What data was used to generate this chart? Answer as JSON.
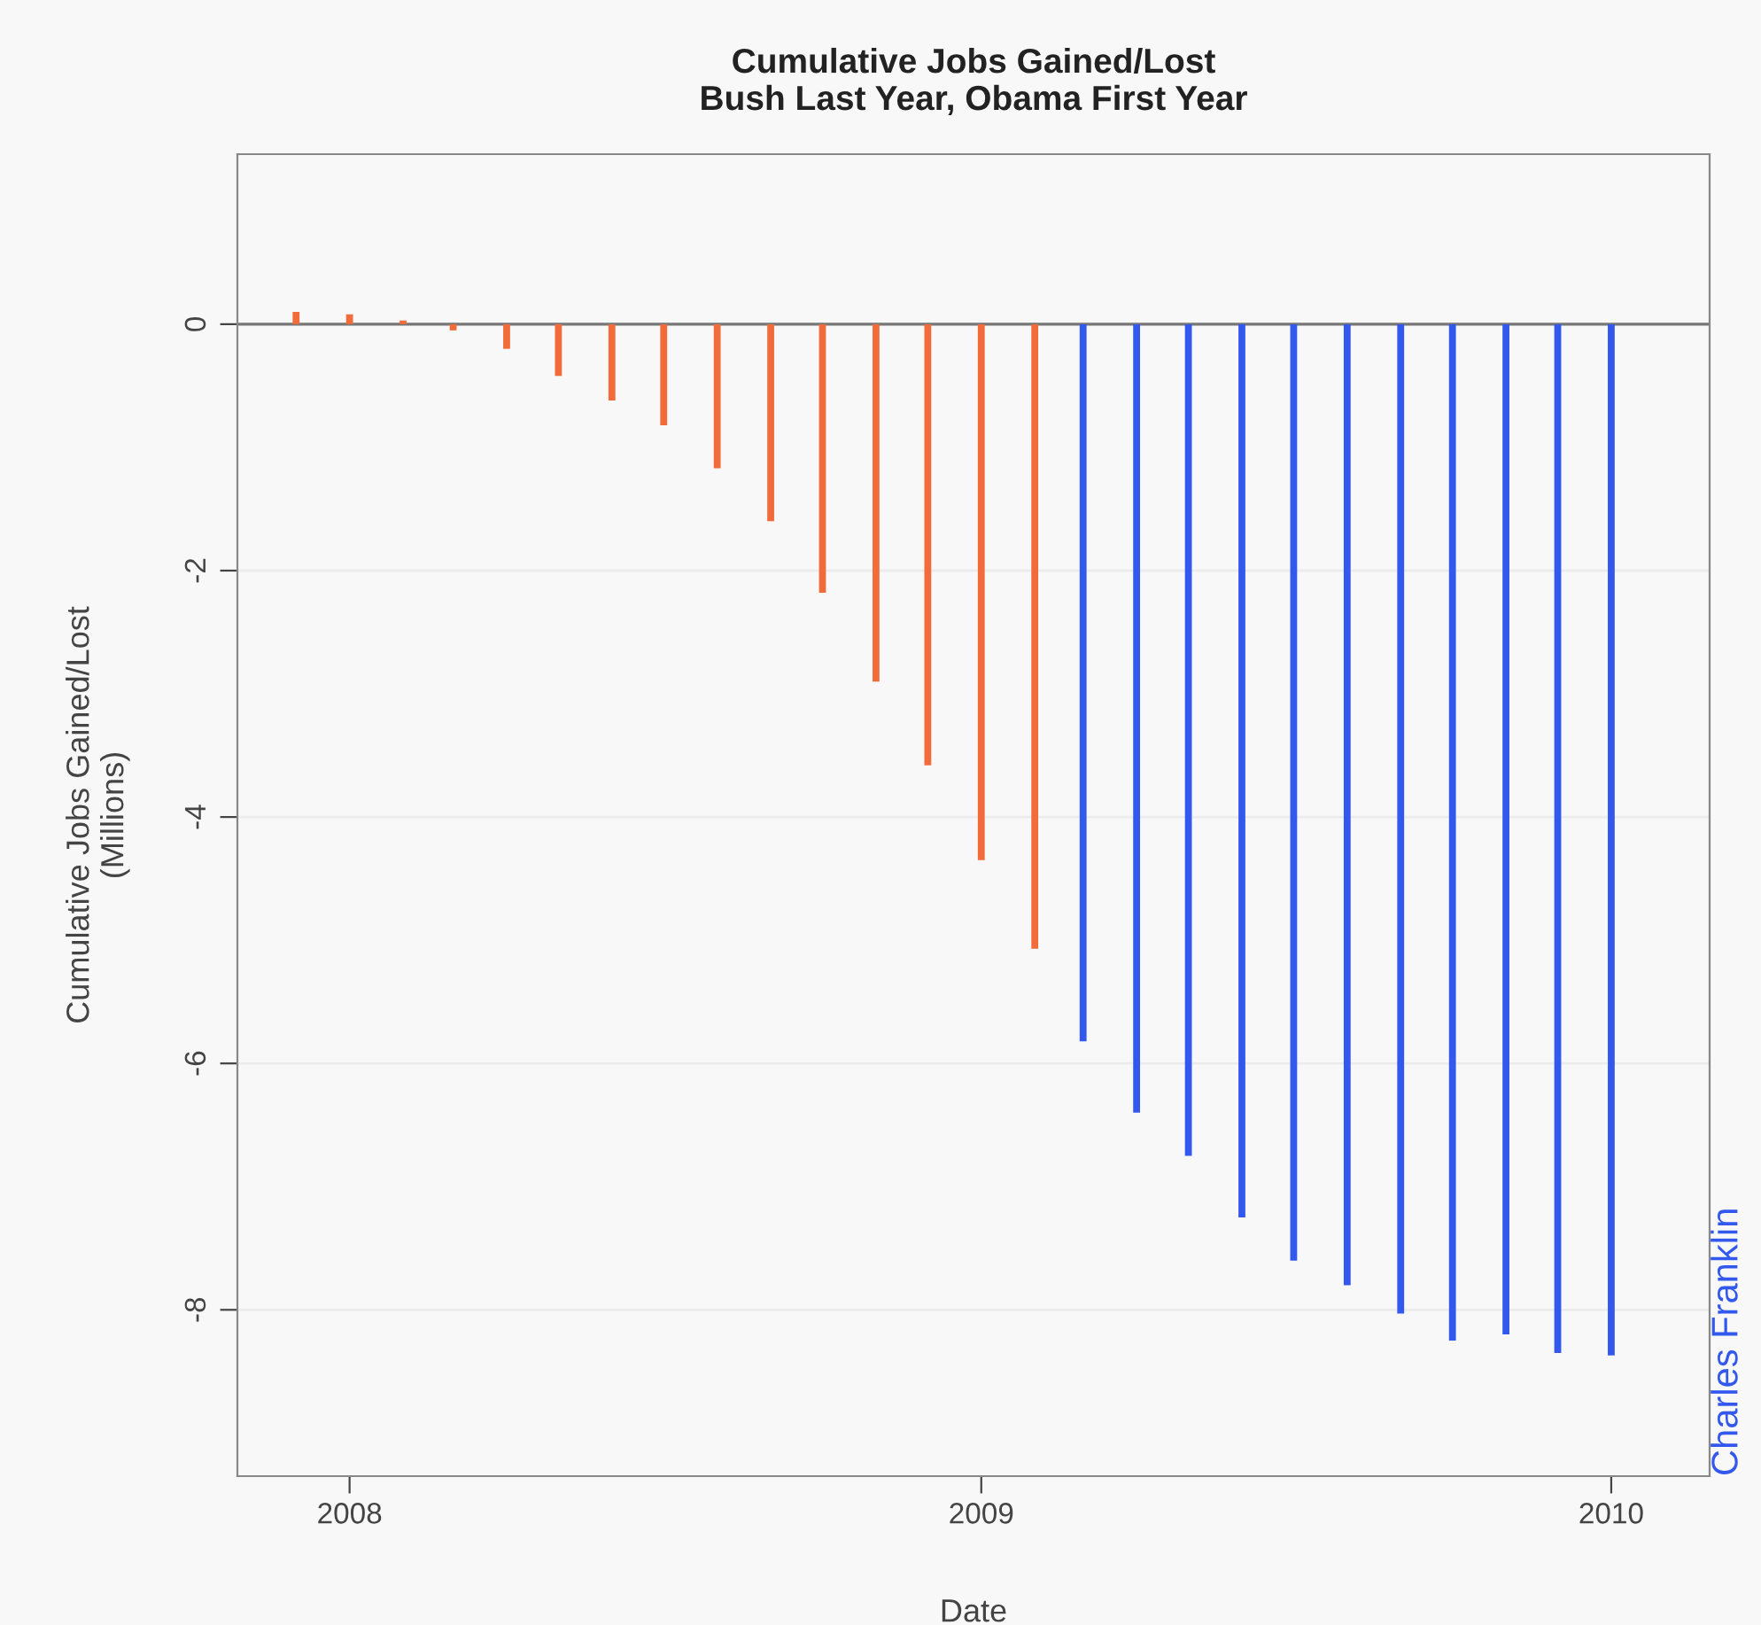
{
  "chart_data": {
    "type": "bar",
    "title": "Cumulative Jobs Gained/Lost\nBush Last Year, Obama First Year",
    "xlabel": "Date",
    "ylabel": "Cumulative Jobs Gained/Lost\n(Millions)",
    "series": [
      {
        "color": "#f26b3a",
        "x": [
          "2007-12",
          "2008-01",
          "2008-02",
          "2008-03",
          "2008-04",
          "2008-05",
          "2008-06",
          "2008-07",
          "2008-08",
          "2008-09",
          "2008-10",
          "2008-11",
          "2008-12",
          "2009-01",
          "2009-02"
        ],
        "values": [
          0.1,
          0.08,
          0.03,
          -0.05,
          -0.2,
          -0.42,
          -0.62,
          -0.82,
          -1.17,
          -1.6,
          -2.18,
          -2.9,
          -3.58,
          -4.35,
          -5.07
        ]
      },
      {
        "color": "#3358ee",
        "x": [
          "2009-03",
          "2009-04",
          "2009-05",
          "2009-06",
          "2009-07",
          "2009-08",
          "2009-09",
          "2009-10",
          "2009-11",
          "2009-12",
          "2010-01"
        ],
        "values": [
          -5.82,
          -6.4,
          -6.75,
          -7.25,
          -7.6,
          -7.8,
          -8.03,
          -8.25,
          -8.2,
          -8.35,
          -8.37
        ]
      }
    ],
    "xlim": [
      "2007-10-28",
      "2010-02-27"
    ],
    "xticks": [
      {
        "value": "2008",
        "label": "2008"
      },
      {
        "value": "2009",
        "label": "2009"
      },
      {
        "value": "2010",
        "label": "2010"
      }
    ],
    "ylim": [
      -9.35,
      1.38
    ],
    "yticks": [
      0,
      -2,
      -4,
      -6,
      -8
    ],
    "grid": "y",
    "ref_lines": [
      {
        "axis": "y",
        "value": 0,
        "color": "#777777"
      }
    ],
    "annotations": [
      "Charles Franklin"
    ]
  }
}
